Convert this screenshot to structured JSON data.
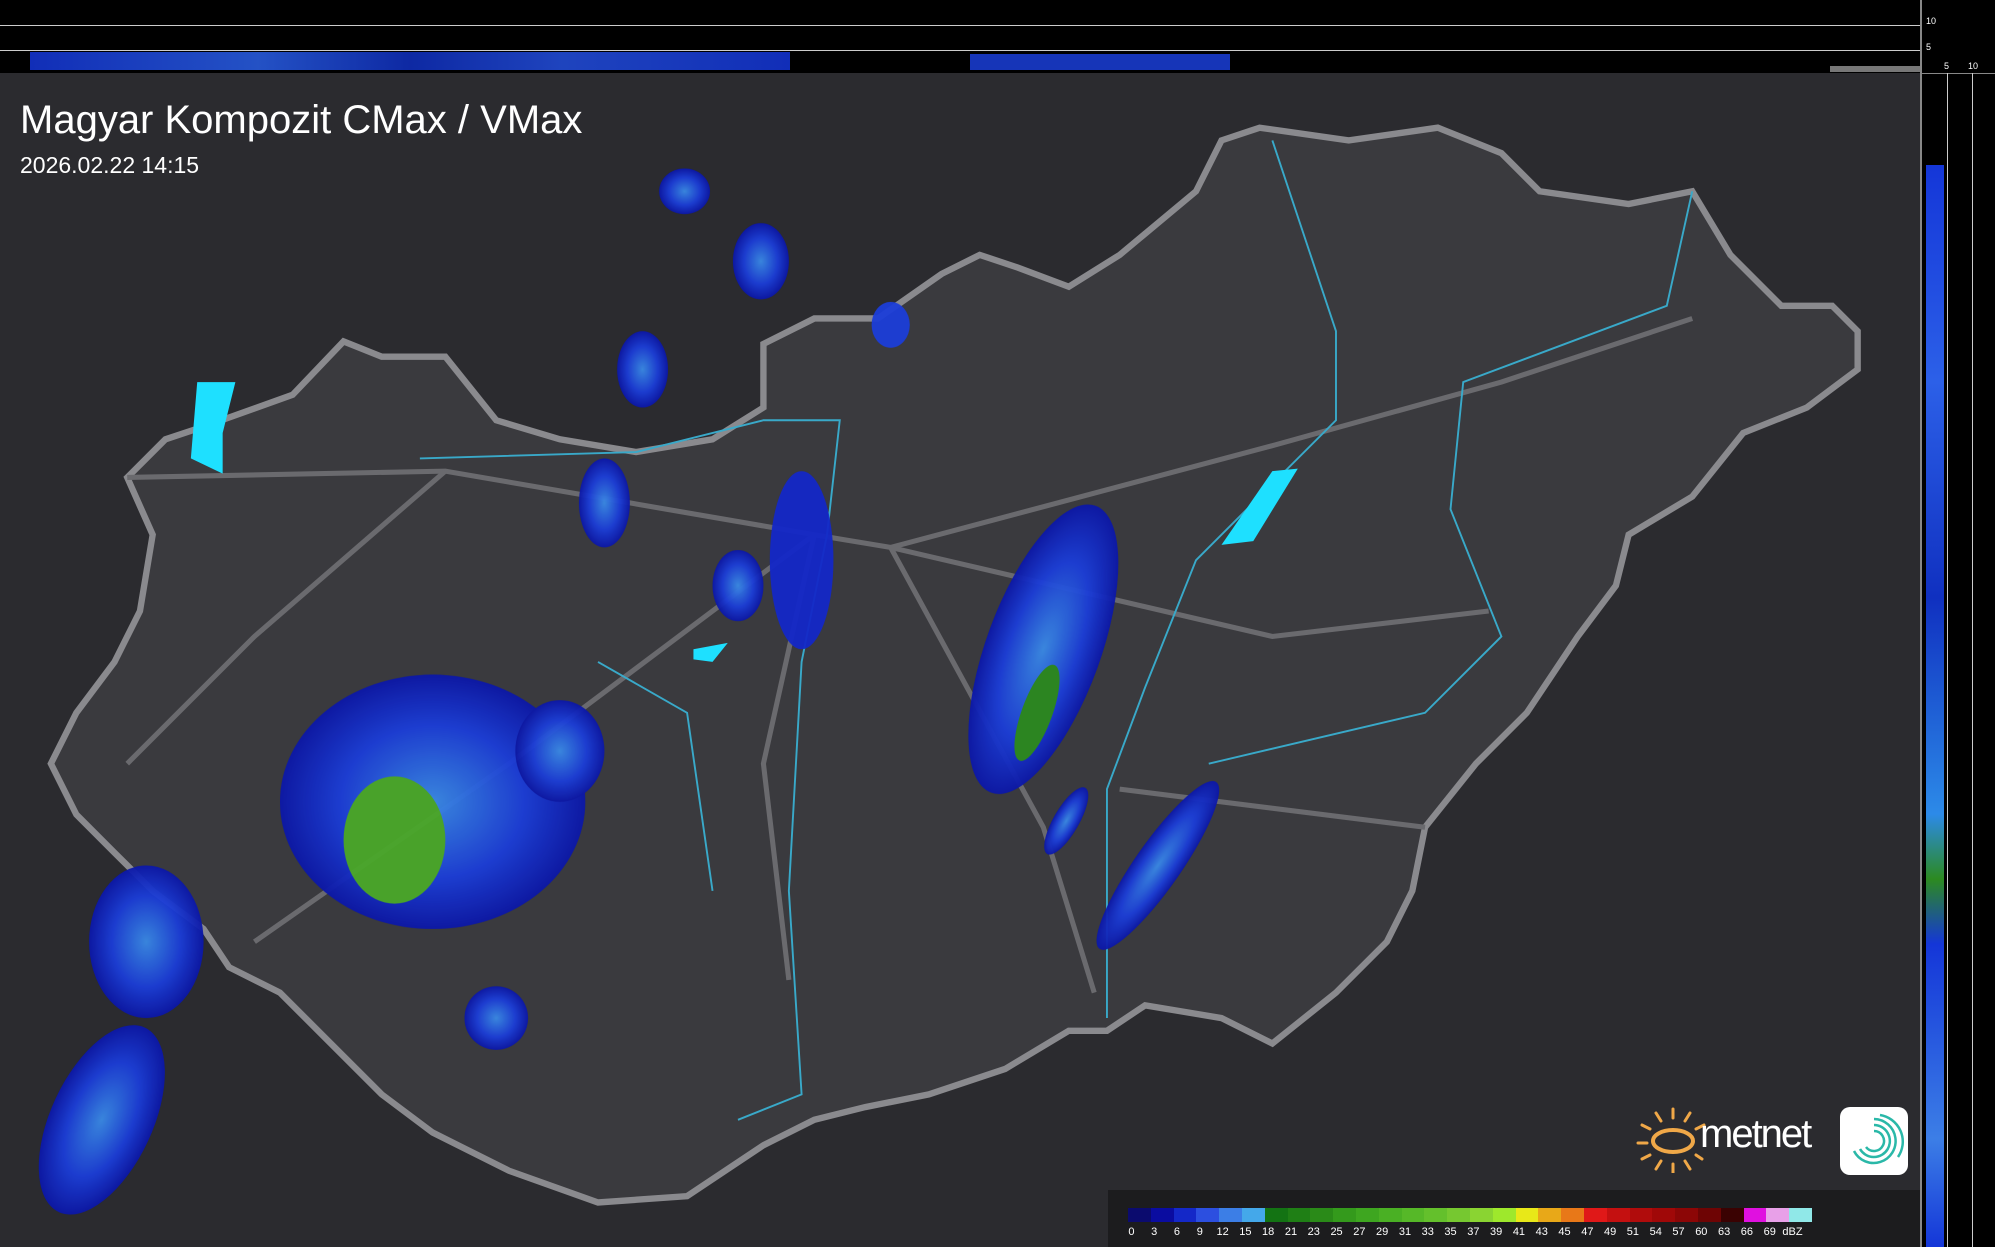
{
  "header": {
    "title": "Magyar Kompozit CMax / VMax",
    "timestamp": "2026.02.22 14:15"
  },
  "profile_axes": {
    "vertical_ticks": [
      "10",
      "5"
    ],
    "horizontal_ticks": [
      "5",
      "10"
    ]
  },
  "legend": {
    "unit": "dBZ",
    "labels": [
      "0",
      "3",
      "6",
      "9",
      "12",
      "15",
      "18",
      "21",
      "23",
      "25",
      "27",
      "29",
      "31",
      "33",
      "35",
      "37",
      "39",
      "41",
      "43",
      "45",
      "47",
      "49",
      "51",
      "54",
      "57",
      "60",
      "63",
      "66",
      "69"
    ],
    "colors": [
      "#0b0b6e",
      "#0a0ca0",
      "#1428c8",
      "#2c4fe0",
      "#3c7ee6",
      "#44a8ea",
      "#137313",
      "#1f7f15",
      "#2a8a18",
      "#349a1c",
      "#3ea620",
      "#4ab024",
      "#56b828",
      "#64c02c",
      "#76c830",
      "#8ad432",
      "#9ee82c",
      "#e8e818",
      "#e8a818",
      "#e87818",
      "#e01818",
      "#c41010",
      "#b00c0c",
      "#a00808",
      "#8c0606",
      "#6e0404",
      "#3a0202",
      "#e010e0",
      "#e8a0e8",
      "#90e8e8"
    ]
  },
  "branding": {
    "logo_text": "metnet"
  },
  "colors": {
    "background": "#2b2b2f",
    "border": "#8a8a8e",
    "rivers": "#39a9c9",
    "lakes": "#1ee0ff"
  }
}
